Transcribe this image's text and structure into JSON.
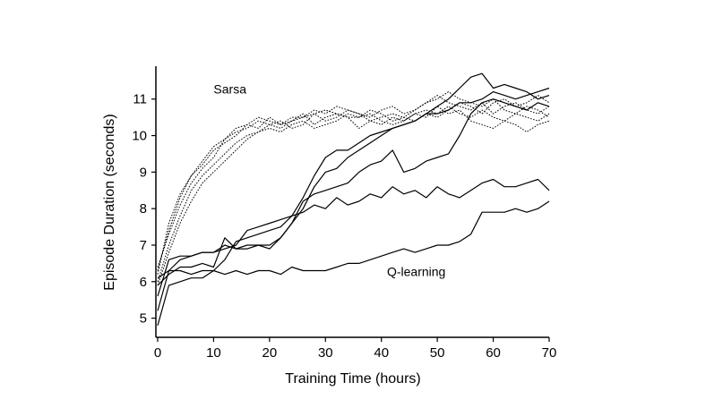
{
  "chart_data": {
    "type": "line",
    "title": "",
    "xlabel": "Training Time (hours)",
    "ylabel": "Episode Duration (seconds)",
    "xlim": [
      0,
      70
    ],
    "ylim": [
      4.5,
      11.9
    ],
    "xticks": [
      0,
      10,
      20,
      30,
      40,
      50,
      60,
      70
    ],
    "yticks": [
      5,
      6,
      7,
      8,
      9,
      10,
      11
    ],
    "grid": false,
    "annotations": [
      {
        "text": "Sarsa",
        "x": 10,
        "y": 11.15
      },
      {
        "text": "Q-learning",
        "x": 41,
        "y": 6.15
      }
    ],
    "series": [
      {
        "group": "sarsa",
        "style": "dotted",
        "x": [
          0,
          2,
          4,
          6,
          8,
          10,
          12,
          14,
          16,
          18,
          20,
          22,
          24,
          26,
          28,
          30,
          32,
          34,
          36,
          38,
          40,
          42,
          44,
          46,
          48,
          50,
          52,
          54,
          56,
          58,
          60,
          62,
          64,
          66,
          68,
          70
        ],
        "y": [
          6.2,
          7.6,
          8.4,
          8.9,
          9.2,
          9.6,
          9.8,
          10.0,
          10.3,
          10.2,
          10.5,
          10.3,
          10.4,
          10.6,
          10.3,
          10.5,
          10.6,
          10.5,
          10.2,
          10.4,
          10.3,
          10.5,
          10.4,
          10.6,
          10.5,
          10.8,
          10.6,
          10.7,
          10.4,
          10.3,
          10.2,
          10.4,
          10.3,
          10.1,
          10.3,
          10.4
        ]
      },
      {
        "group": "sarsa",
        "style": "dotted",
        "x": [
          0,
          2,
          4,
          6,
          8,
          10,
          12,
          14,
          16,
          18,
          20,
          22,
          24,
          26,
          28,
          30,
          32,
          34,
          36,
          38,
          40,
          42,
          44,
          46,
          48,
          50,
          52,
          54,
          56,
          58,
          60,
          62,
          64,
          66,
          68,
          70
        ],
        "y": [
          6.4,
          7.3,
          8.1,
          8.7,
          9.1,
          9.4,
          9.9,
          10.1,
          10.2,
          10.4,
          10.3,
          10.2,
          10.4,
          10.5,
          10.6,
          10.7,
          10.6,
          10.5,
          10.5,
          10.7,
          10.6,
          10.4,
          10.5,
          10.7,
          10.9,
          11.1,
          10.9,
          10.8,
          10.7,
          10.9,
          10.6,
          10.8,
          10.9,
          10.7,
          10.6,
          10.8
        ]
      },
      {
        "group": "sarsa",
        "style": "dotted",
        "x": [
          0,
          2,
          4,
          6,
          8,
          10,
          12,
          14,
          16,
          18,
          20,
          22,
          24,
          26,
          28,
          30,
          32,
          34,
          36,
          38,
          40,
          42,
          44,
          46,
          48,
          50,
          52,
          54,
          56,
          58,
          60,
          62,
          64,
          66,
          68,
          70
        ],
        "y": [
          6.0,
          7.0,
          7.8,
          8.5,
          8.9,
          9.2,
          9.5,
          9.8,
          10.0,
          10.1,
          10.3,
          10.4,
          10.2,
          10.3,
          10.6,
          10.4,
          10.5,
          10.7,
          10.6,
          10.4,
          10.5,
          10.6,
          10.5,
          10.4,
          10.6,
          10.5,
          10.7,
          10.9,
          10.8,
          10.6,
          10.9,
          11.0,
          10.8,
          10.9,
          11.1,
          10.9
        ]
      },
      {
        "group": "sarsa",
        "style": "dotted",
        "x": [
          0,
          2,
          4,
          6,
          8,
          10,
          12,
          14,
          16,
          18,
          20,
          22,
          24,
          26,
          28,
          30,
          32,
          34,
          36,
          38,
          40,
          42,
          44,
          46,
          48,
          50,
          52,
          54,
          56,
          58,
          60,
          62,
          64,
          66,
          68,
          70
        ],
        "y": [
          5.9,
          6.8,
          7.6,
          8.2,
          8.7,
          9.0,
          9.3,
          9.6,
          9.9,
          10.1,
          10.2,
          10.1,
          10.3,
          10.4,
          10.2,
          10.3,
          10.4,
          10.6,
          10.5,
          10.6,
          10.4,
          10.3,
          10.4,
          10.6,
          10.7,
          10.6,
          10.8,
          10.6,
          10.5,
          10.7,
          10.5,
          10.4,
          10.6,
          10.5,
          10.4,
          10.6
        ]
      },
      {
        "group": "sarsa",
        "style": "dotted",
        "x": [
          0,
          2,
          4,
          6,
          8,
          10,
          12,
          14,
          16,
          18,
          20,
          22,
          24,
          26,
          28,
          30,
          32,
          34,
          36,
          38,
          40,
          42,
          44,
          46,
          48,
          50,
          52,
          54,
          56,
          58,
          60,
          62,
          64,
          66,
          68,
          70
        ],
        "y": [
          6.3,
          7.4,
          8.3,
          8.9,
          9.3,
          9.7,
          9.9,
          10.2,
          10.3,
          10.5,
          10.4,
          10.3,
          10.5,
          10.5,
          10.7,
          10.6,
          10.8,
          10.7,
          10.6,
          10.5,
          10.7,
          10.8,
          10.6,
          10.7,
          10.9,
          11.0,
          11.2,
          11.0,
          10.9,
          10.8,
          11.0,
          10.7,
          10.6,
          10.8,
          10.7,
          10.5
        ]
      },
      {
        "group": "qlearning",
        "style": "solid",
        "x": [
          0,
          2,
          4,
          6,
          8,
          10,
          12,
          14,
          16,
          18,
          20,
          22,
          24,
          26,
          28,
          30,
          32,
          34,
          36,
          38,
          40,
          42,
          44,
          46,
          48,
          50,
          52,
          54,
          56,
          58,
          60,
          62,
          64,
          66,
          68,
          70
        ],
        "y": [
          5.2,
          6.3,
          6.6,
          6.7,
          6.8,
          6.8,
          6.9,
          7.0,
          7.4,
          7.5,
          7.6,
          7.7,
          7.8,
          7.9,
          8.1,
          8.0,
          8.3,
          8.1,
          8.2,
          8.4,
          8.3,
          8.6,
          8.4,
          8.5,
          8.3,
          8.6,
          8.4,
          8.3,
          8.5,
          8.7,
          8.8,
          8.6,
          8.6,
          8.7,
          8.8,
          8.5
        ]
      },
      {
        "group": "qlearning",
        "style": "solid",
        "x": [
          0,
          2,
          4,
          6,
          8,
          10,
          12,
          14,
          16,
          18,
          20,
          22,
          24,
          26,
          28,
          30,
          32,
          34,
          36,
          38,
          40,
          42,
          44,
          46,
          48,
          50,
          52,
          54,
          56,
          58,
          60,
          62,
          64,
          66,
          68,
          70
        ],
        "y": [
          6.1,
          6.3,
          6.3,
          6.2,
          6.3,
          6.3,
          6.2,
          6.3,
          6.2,
          6.3,
          6.3,
          6.2,
          6.4,
          6.3,
          6.3,
          6.3,
          6.4,
          6.5,
          6.5,
          6.6,
          6.7,
          6.8,
          6.9,
          6.8,
          6.9,
          7.0,
          7.0,
          7.1,
          7.3,
          7.9,
          7.9,
          7.9,
          8.0,
          7.9,
          8.0,
          8.2
        ]
      },
      {
        "group": "qlearning",
        "style": "solid",
        "x": [
          0,
          2,
          4,
          6,
          8,
          10,
          12,
          14,
          16,
          18,
          20,
          22,
          24,
          26,
          28,
          30,
          32,
          34,
          36,
          38,
          40,
          42,
          44,
          46,
          48,
          50,
          52,
          54,
          56,
          58,
          60,
          62,
          64,
          66,
          68,
          70
        ],
        "y": [
          4.8,
          5.9,
          6.0,
          6.1,
          6.1,
          6.3,
          6.6,
          7.1,
          7.2,
          7.3,
          7.4,
          7.5,
          7.8,
          8.3,
          8.9,
          9.4,
          9.6,
          9.6,
          9.8,
          10.0,
          10.1,
          10.2,
          10.3,
          10.4,
          10.6,
          10.6,
          10.7,
          10.9,
          10.9,
          11.0,
          11.2,
          11.1,
          11.0,
          11.1,
          11.2,
          11.3
        ]
      },
      {
        "group": "qlearning",
        "style": "solid",
        "x": [
          0,
          2,
          4,
          6,
          8,
          10,
          12,
          14,
          16,
          18,
          20,
          22,
          24,
          26,
          28,
          30,
          32,
          34,
          36,
          38,
          40,
          42,
          44,
          46,
          48,
          50,
          52,
          54,
          56,
          58,
          60,
          62,
          64,
          66,
          68,
          70
        ],
        "y": [
          5.6,
          6.6,
          6.7,
          6.7,
          6.8,
          6.8,
          7.0,
          6.9,
          7.0,
          7.0,
          6.9,
          7.2,
          7.6,
          8.2,
          8.4,
          8.5,
          8.6,
          8.7,
          9.0,
          9.2,
          9.3,
          9.6,
          9.0,
          9.1,
          9.3,
          9.4,
          9.5,
          10.0,
          10.6,
          10.9,
          11.0,
          10.9,
          10.8,
          10.7,
          10.9,
          10.8
        ]
      },
      {
        "group": "qlearning",
        "style": "solid",
        "x": [
          0,
          2,
          4,
          6,
          8,
          10,
          12,
          14,
          16,
          18,
          20,
          22,
          24,
          26,
          28,
          30,
          32,
          34,
          36,
          38,
          40,
          42,
          44,
          46,
          48,
          50,
          52,
          54,
          56,
          58,
          60,
          62,
          64,
          66,
          68,
          70
        ],
        "y": [
          5.9,
          6.2,
          6.4,
          6.4,
          6.5,
          6.4,
          7.2,
          6.9,
          6.9,
          7.0,
          7.0,
          7.2,
          7.6,
          8.0,
          8.6,
          9.0,
          9.1,
          9.4,
          9.6,
          9.8,
          10.0,
          10.2,
          10.3,
          10.4,
          10.6,
          10.8,
          11.0,
          11.3,
          11.6,
          11.7,
          11.3,
          11.4,
          11.3,
          11.2,
          11.0,
          11.1
        ]
      }
    ]
  }
}
